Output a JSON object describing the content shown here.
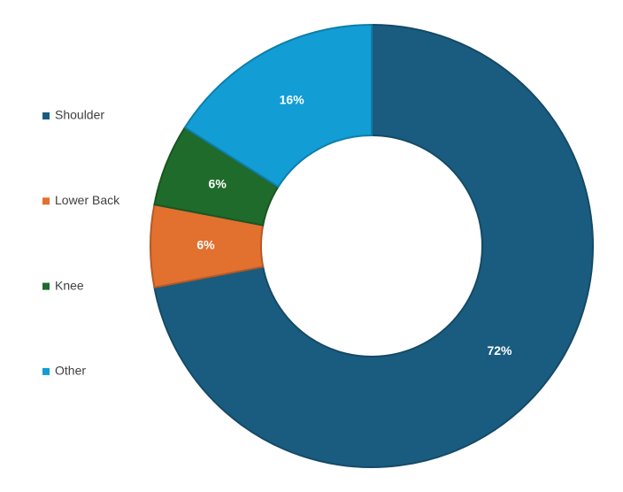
{
  "chart_data": {
    "type": "donut",
    "categories": [
      "Shoulder",
      "Lower Back",
      "Knee",
      "Other"
    ],
    "values": [
      72,
      6,
      6,
      16
    ],
    "value_labels": [
      "72%",
      "6%",
      "6%",
      "16%"
    ],
    "colors": [
      "#1a5c7f",
      "#e2702f",
      "#1f6b2b",
      "#129dd5"
    ],
    "legend": "left"
  }
}
